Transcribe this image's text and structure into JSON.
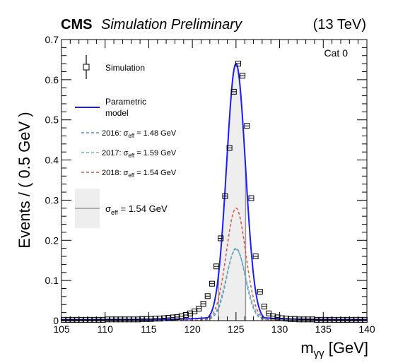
{
  "chart_data": {
    "type": "line",
    "header": {
      "experiment": "CMS",
      "status": "Simulation Preliminary",
      "energy": "(13 TeV)"
    },
    "category_label": "Cat 0",
    "xlabel": "m",
    "xlabel_sub": "γγ",
    "xlabel_unit": " [GeV]",
    "ylabel": "Events / ( 0.5 GeV )",
    "xlim": [
      105,
      140
    ],
    "ylim": [
      0,
      0.7
    ],
    "xticks": [
      105,
      110,
      115,
      120,
      125,
      130,
      135,
      140
    ],
    "yticks": [
      0,
      0.1,
      0.2,
      0.3,
      0.4,
      0.5,
      0.6,
      0.7
    ],
    "legend": {
      "simulation": "Simulation",
      "parametric_line1": "Parametric",
      "parametric_line2": "model",
      "y2016_year": "2016: ",
      "y2016_sub": "eff",
      "y2016_val": " = 1.48 GeV",
      "y2017_year": "2017: ",
      "y2017_sub": "eff",
      "y2017_val": " = 1.59 GeV",
      "y2018_year": "2018: ",
      "y2018_sub": "eff",
      "y2018_val": " = 1.54 GeV",
      "sigma_sub": "eff",
      "sigma_val": " = 1.54 GeV"
    },
    "colors": {
      "model": "#1a1aff",
      "y2016": "#5b8fc7",
      "y2017": "#6ab5b5",
      "y2018": "#d9584c",
      "band": "#eeeeee"
    },
    "sigma_eff_band": [
      123.0,
      126.1
    ],
    "peak": 125.0,
    "simulation_points": {
      "x": [
        105.25,
        105.75,
        106.25,
        106.75,
        107.25,
        107.75,
        108.25,
        108.75,
        109.25,
        109.75,
        110.25,
        110.75,
        111.25,
        111.75,
        112.25,
        112.75,
        113.25,
        113.75,
        114.25,
        114.75,
        115.25,
        115.75,
        116.25,
        116.75,
        117.25,
        117.75,
        118.25,
        118.75,
        119.25,
        119.75,
        120.25,
        120.75,
        121.25,
        121.75,
        122.25,
        122.75,
        123.25,
        123.75,
        124.25,
        124.75,
        125.25,
        125.75,
        126.25,
        126.75,
        127.25,
        127.75,
        128.25,
        128.75,
        129.25,
        129.75,
        130.25,
        130.75,
        131.25,
        131.75,
        132.25,
        132.75,
        133.25,
        133.75,
        134.25,
        134.75,
        135.25,
        135.75,
        136.25,
        136.75,
        137.25,
        137.75,
        138.25,
        138.75,
        139.25,
        139.75
      ],
      "y": [
        0.002,
        0.002,
        0.002,
        0.002,
        0.002,
        0.002,
        0.002,
        0.002,
        0.002,
        0.002,
        0.003,
        0.003,
        0.003,
        0.003,
        0.003,
        0.003,
        0.003,
        0.003,
        0.004,
        0.004,
        0.004,
        0.005,
        0.005,
        0.006,
        0.007,
        0.008,
        0.009,
        0.011,
        0.014,
        0.018,
        0.023,
        0.03,
        0.042,
        0.061,
        0.092,
        0.135,
        0.205,
        0.31,
        0.43,
        0.57,
        0.64,
        0.61,
        0.485,
        0.305,
        0.16,
        0.072,
        0.035,
        0.018,
        0.011,
        0.008,
        0.006,
        0.005,
        0.004,
        0.004,
        0.003,
        0.003,
        0.003,
        0.003,
        0.002,
        0.002,
        0.002,
        0.002,
        0.002,
        0.002,
        0.002,
        0.002,
        0.002,
        0.002,
        0.002,
        0.002
      ]
    }
  }
}
